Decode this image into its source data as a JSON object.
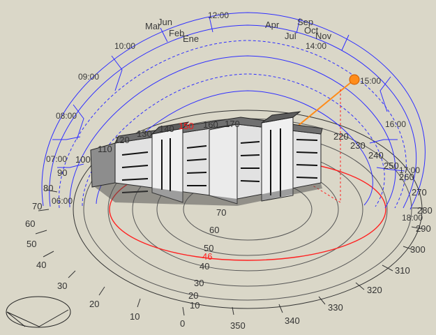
{
  "scene": {
    "azimuth_labels": [
      "0",
      "10",
      "20",
      "30",
      "40",
      "50",
      "60",
      "70",
      "80",
      "90",
      "100",
      "110",
      "120",
      "130",
      "140",
      "150",
      "160",
      "170",
      "220",
      "230",
      "240",
      "250",
      "260",
      "270",
      "280",
      "290",
      "300",
      "310",
      "320",
      "330",
      "340",
      "350"
    ],
    "altitude_labels": [
      "10",
      "20",
      "30",
      "40",
      "50",
      "60",
      "70"
    ],
    "highlight_altitude": "46",
    "highlight_azimuth": "150",
    "sun_time": "15:00",
    "hour_labels": [
      "06:00",
      "07:00",
      "08:00",
      "09:00",
      "10:00",
      "12:00",
      "14:00",
      "15:00",
      "16:00",
      "17:00",
      "18:00"
    ],
    "month_labels": [
      "Mar",
      "Jun",
      "Feb",
      "Ene",
      "Sep",
      "Apr",
      "Oct",
      "Jul",
      "Nov"
    ],
    "colors": {
      "background": "#dad7c8",
      "sun_path": "#3333ff",
      "sun": "#ff8c1a",
      "highlight": "#ff2020",
      "ground_rings": "#444444",
      "building_wall": "#e8e8e8",
      "building_roof": "#707070"
    },
    "icons": [
      "compass-inset-icon",
      "sun-icon"
    ]
  }
}
